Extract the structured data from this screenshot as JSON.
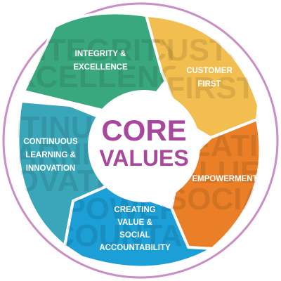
{
  "center": {
    "line1": "CORE",
    "line2": "VALUES"
  },
  "segments": [
    {
      "name": "integrity",
      "label_lines": [
        "INTEGRITY &",
        "EXCELLENCE"
      ],
      "color": "#3aa87f"
    },
    {
      "name": "customer",
      "label_lines": [
        "CUSTOMER",
        "FIRST"
      ],
      "color": "#f2be4f"
    },
    {
      "name": "empowerment",
      "label_lines": [
        "EMPOWERMENT"
      ],
      "color": "#ea7f27"
    },
    {
      "name": "creating-value",
      "label_lines": [
        "CREATING",
        "VALUE &",
        "SOCIAL",
        "ACCOUNTABILITY"
      ],
      "color": "#1c9fd6"
    },
    {
      "name": "continuous-learning",
      "label_lines": [
        "CONTINUOUS",
        "LEARNING &",
        "INNOVATION"
      ],
      "color": "#3aa6b9"
    }
  ],
  "colors": {
    "ring": "#c98ec4",
    "center_text": "#a8479b",
    "background": "#ffffff"
  }
}
